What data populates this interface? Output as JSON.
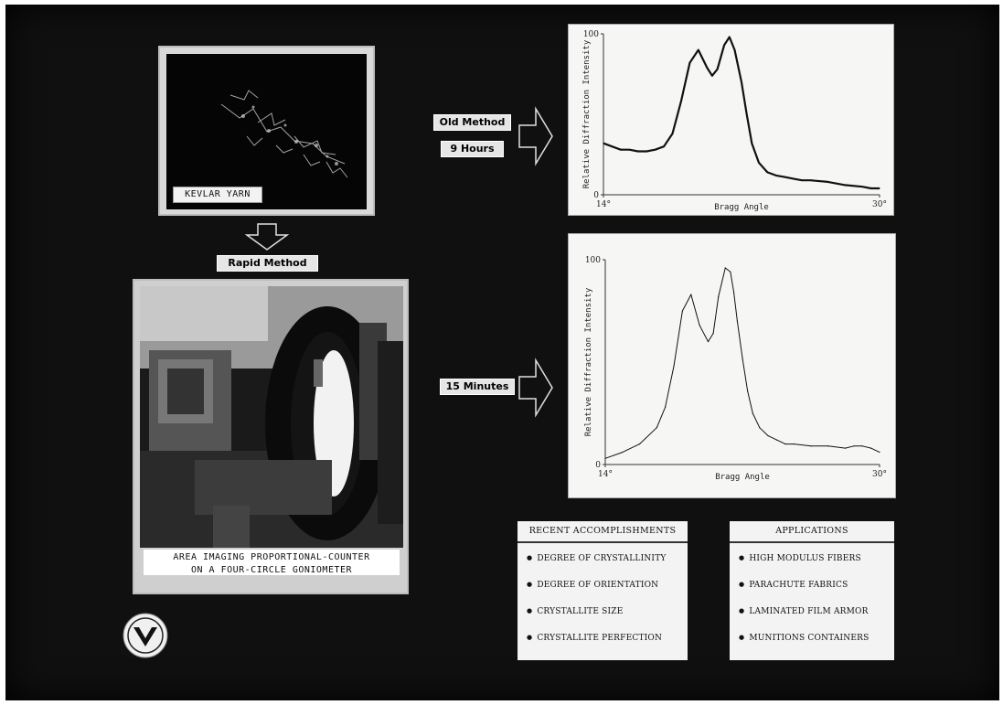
{
  "photos": {
    "kevlar": {
      "label": "KEVLAR YARN"
    },
    "instrument": {
      "label_line1": "AREA IMAGING PROPORTIONAL-COUNTER",
      "label_line2": "ON A FOUR-CIRCLE GONIOMETER"
    }
  },
  "tags": {
    "old_method": "Old Method",
    "old_time": "9 Hours",
    "rapid_method": "Rapid Method",
    "rapid_time": "15 Minutes"
  },
  "chart_data": [
    {
      "type": "line",
      "ylabel": "Relative Diffraction Intensity",
      "xlabel": "Bragg Angle",
      "x_ticks": [
        "14°",
        "30°"
      ],
      "y_ticks": [
        "100",
        "0"
      ],
      "xlim": [
        14,
        30
      ],
      "ylim": [
        0,
        100
      ],
      "grid": false,
      "x": [
        14.0,
        14.5,
        15.0,
        15.5,
        16.0,
        16.5,
        17.0,
        17.5,
        18.0,
        18.5,
        19.0,
        19.5,
        20.0,
        20.3,
        20.6,
        21.0,
        21.3,
        21.6,
        22.0,
        22.3,
        22.6,
        23.0,
        23.5,
        24.0,
        24.5,
        25.0,
        25.5,
        26.0,
        27.0,
        28.0,
        29.0,
        29.5,
        30.0
      ],
      "y": [
        32,
        30,
        28,
        28,
        27,
        27,
        28,
        30,
        38,
        58,
        82,
        90,
        79,
        74,
        78,
        93,
        98,
        90,
        70,
        50,
        32,
        20,
        14,
        12,
        11,
        10,
        9,
        9,
        8,
        6,
        5,
        4,
        4
      ]
    },
    {
      "type": "line",
      "ylabel": "Relative Diffraction Intensity",
      "xlabel": "Bragg Angle",
      "x_ticks": [
        "14°",
        "30°"
      ],
      "y_ticks": [
        "100",
        "0"
      ],
      "xlim": [
        14,
        30
      ],
      "ylim": [
        0,
        100
      ],
      "grid": false,
      "x": [
        14.0,
        15.0,
        16.0,
        17.0,
        17.5,
        18.0,
        18.5,
        19.0,
        19.5,
        20.0,
        20.3,
        20.6,
        21.0,
        21.3,
        21.5,
        21.7,
        22.0,
        22.3,
        22.6,
        23.0,
        23.5,
        24.0,
        24.5,
        25.0,
        26.0,
        27.0,
        28.0,
        28.5,
        29.0,
        29.5,
        30.0
      ],
      "y": [
        3,
        6,
        10,
        18,
        28,
        48,
        75,
        83,
        68,
        60,
        64,
        82,
        96,
        94,
        84,
        70,
        52,
        36,
        25,
        18,
        14,
        12,
        10,
        10,
        9,
        9,
        8,
        9,
        9,
        8,
        6
      ]
    }
  ],
  "accomplishments": {
    "title": "RECENT ACCOMPLISHMENTS",
    "items": [
      "DEGREE OF CRYSTALLINITY",
      "DEGREE OF ORIENTATION",
      "CRYSTALLITE SIZE",
      "CRYSTALLITE PERFECTION"
    ]
  },
  "applications": {
    "title": "APPLICATIONS",
    "items": [
      "HIGH MODULUS FIBERS",
      "PARACHUTE FABRICS",
      "LAMINATED FILM ARMOR",
      "MUNITIONS CONTAINERS"
    ]
  }
}
